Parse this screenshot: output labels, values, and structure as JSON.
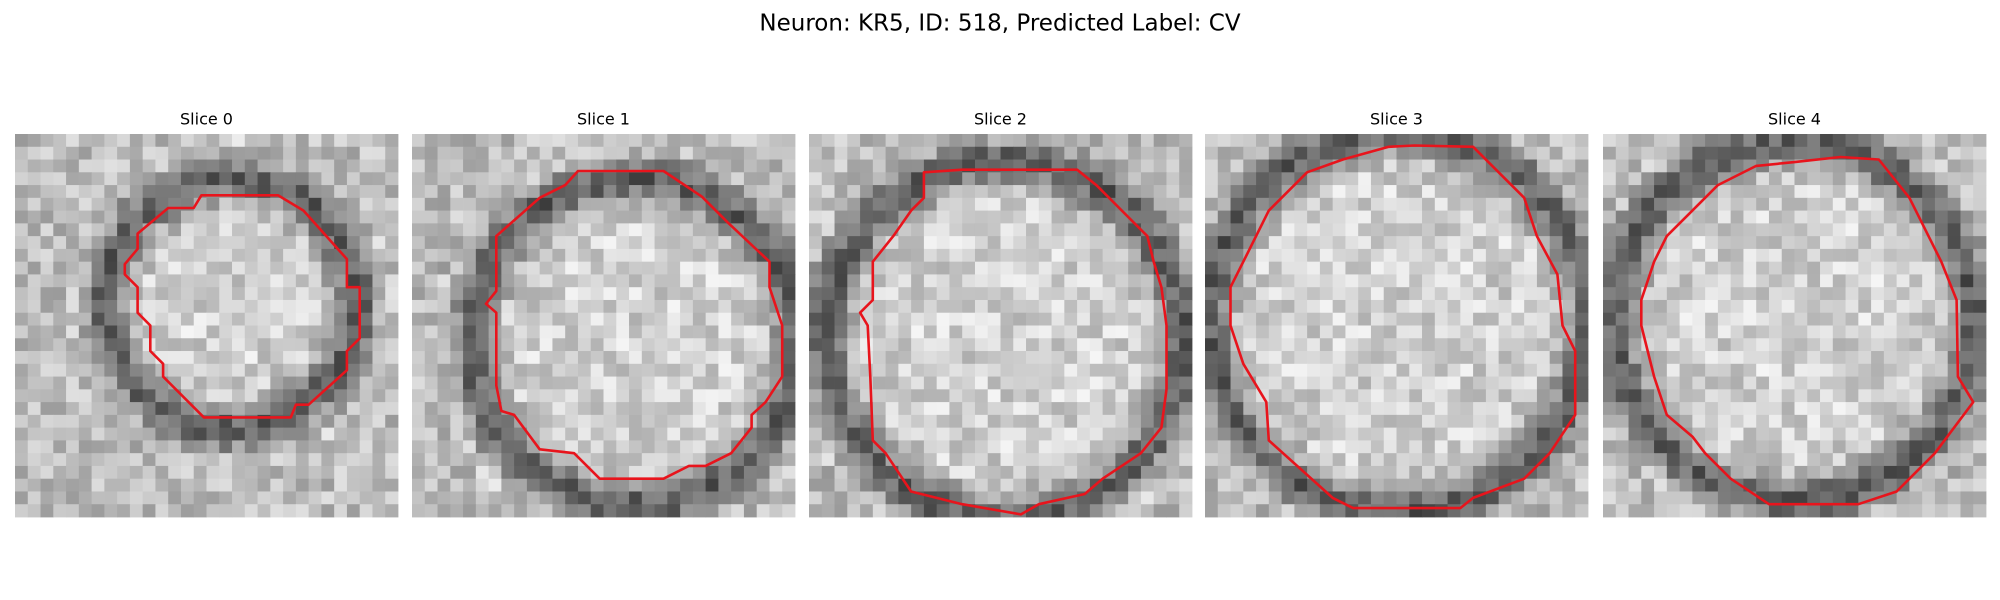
{
  "title": "Neuron: KR5, ID: 518, Predicted Label: CV",
  "panels": [
    {
      "title": "Slice 0"
    },
    {
      "title": "Slice 1"
    },
    {
      "title": "Slice 2"
    },
    {
      "title": "Slice 3"
    },
    {
      "title": "Slice 4"
    }
  ]
}
